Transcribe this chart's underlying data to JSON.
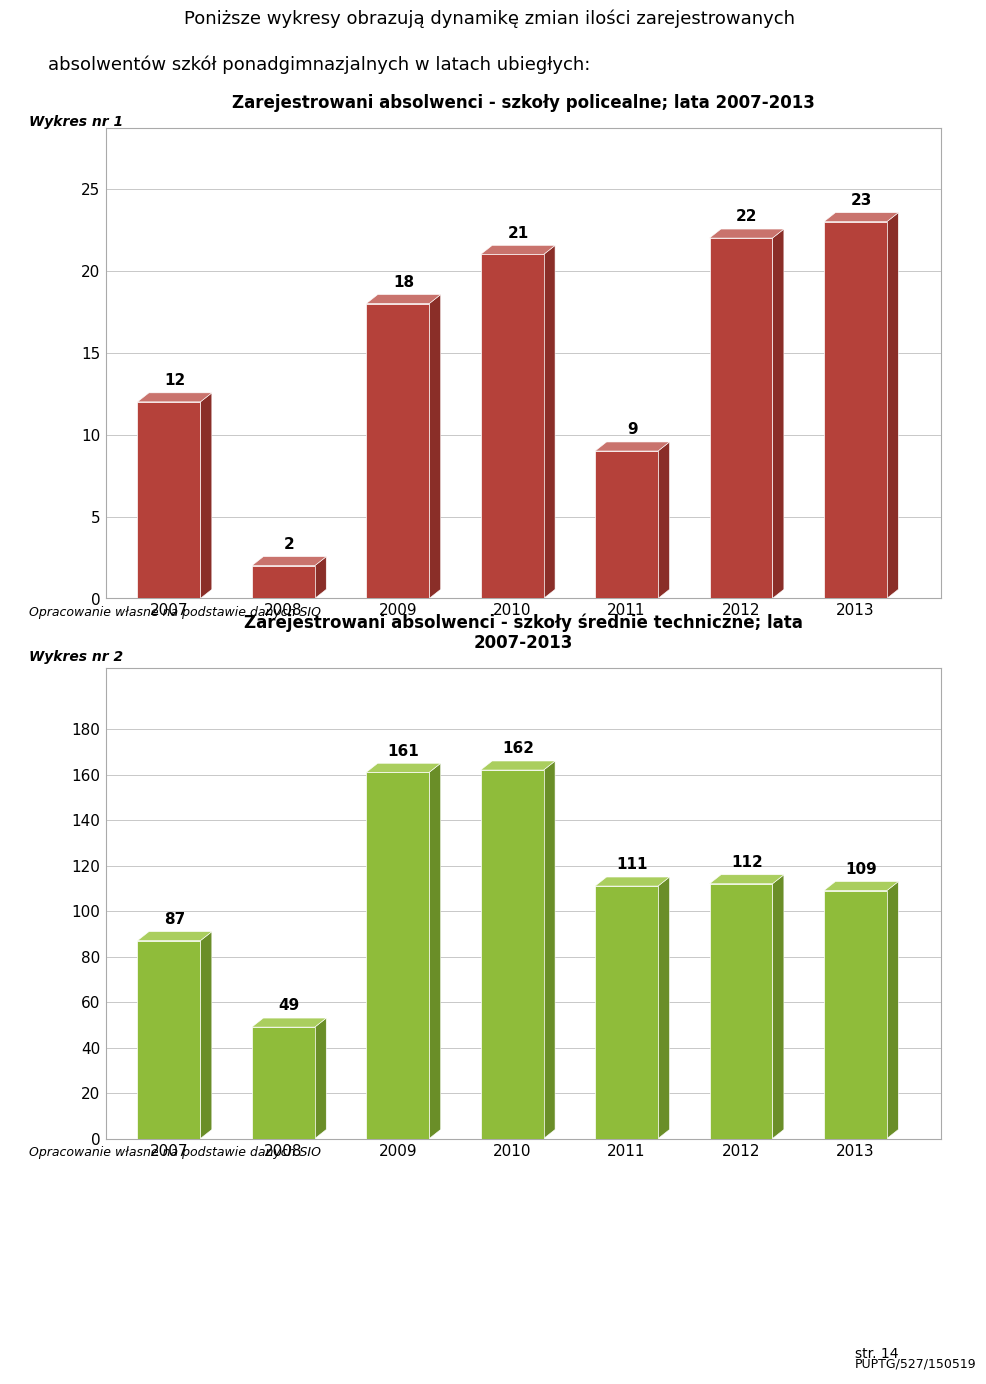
{
  "header_line1": "Poniższe wykresy obrazują dynamikę zmian ilości zarejestrowanych",
  "header_line2": "absolwentów szkół ponadgimnazjalnych w latach ubiegłych:",
  "chart1_label": "Wykres nr 1",
  "chart1_title": "Zarejestrowani absolwenci - szkoły policealne; lata 2007-2013",
  "chart1_years": [
    "2007",
    "2008",
    "2009",
    "2010",
    "2011",
    "2012",
    "2013"
  ],
  "chart1_values": [
    12,
    2,
    18,
    21,
    9,
    22,
    23
  ],
  "chart1_color": "#b5413a",
  "chart1_side_color": "#8a2e28",
  "chart1_top_color": "#c9736d",
  "chart1_ylim": [
    0,
    25
  ],
  "chart1_yticks": [
    0,
    5,
    10,
    15,
    20,
    25
  ],
  "chart2_label": "Wykres nr 2",
  "chart2_title": "Zarejestrowani absolwenci - szkoły średnie techniczne; lata\n2007-2013",
  "chart2_years": [
    "2007",
    "2008",
    "2009",
    "2010",
    "2011",
    "2012",
    "2013"
  ],
  "chart2_values": [
    87,
    49,
    161,
    162,
    111,
    112,
    109
  ],
  "chart2_color": "#8fbc3a",
  "chart2_side_color": "#6a8e28",
  "chart2_top_color": "#aace5e",
  "chart2_ylim": [
    0,
    180
  ],
  "chart2_yticks": [
    0,
    20,
    40,
    60,
    80,
    100,
    120,
    140,
    160,
    180
  ],
  "caption_text": "Opracowanie własne na podstawie danych SIO",
  "footer_str14": "str. 14",
  "footer_code": "PUPTG/527/150519",
  "bg_color": "#ffffff",
  "chart_bg": "#ffffff",
  "grid_color": "#c8c8c8"
}
